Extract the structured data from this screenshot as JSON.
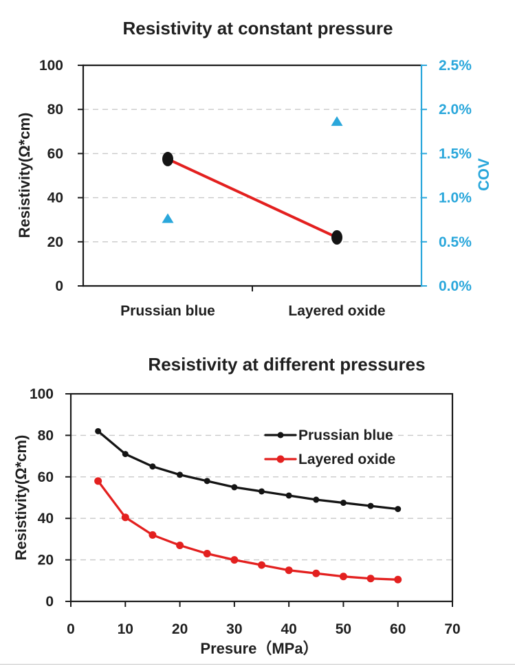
{
  "colors": {
    "background": "#ffffff",
    "text": "#1f1f1f",
    "series_black": "#141414",
    "series_red": "#e3201f",
    "cov_cyan": "#2aa7db",
    "gridline": "#c8c8c8",
    "frame": "#1a1a1a"
  },
  "chart_data": [
    {
      "type": "scatter",
      "title": "Resistivity at constant pressure",
      "categories": [
        "Prussian blue",
        "Layered oxide"
      ],
      "left_axis": {
        "label": "Resistivity(Ω*cm)",
        "ticks": [
          0,
          20,
          40,
          60,
          80,
          100
        ],
        "range": [
          0,
          100
        ]
      },
      "right_axis": {
        "label": "COV",
        "ticks": [
          "0.0%",
          "0.5%",
          "1.0%",
          "1.5%",
          "2.0%",
          "2.5%"
        ],
        "tick_values": [
          0,
          0.5,
          1.0,
          1.5,
          2.0,
          2.5
        ],
        "range": [
          0,
          2.5
        ],
        "unit": "%"
      },
      "grid_values": [
        20,
        40,
        60,
        80
      ],
      "grid_style": "dashed",
      "series": [
        {
          "name": "Resistivity",
          "axis": "left",
          "marker": "ellipse",
          "marker_color": "#141414",
          "line_color": "#e3201f",
          "values": [
            57.5,
            22
          ]
        },
        {
          "name": "COV",
          "axis": "right",
          "marker": "triangle",
          "marker_color": "#2aa7db",
          "unit": "%",
          "values": [
            0.76,
            1.86
          ]
        }
      ]
    },
    {
      "type": "line",
      "title": "Resistivity at different pressures",
      "xlabel": "Presure（MPa）",
      "ylabel": "Resistivity(Ω*cm)",
      "xlim": [
        0,
        70
      ],
      "ylim": [
        0,
        100
      ],
      "x_ticks": [
        0,
        10,
        20,
        30,
        40,
        50,
        60,
        70
      ],
      "y_ticks": [
        0,
        20,
        40,
        60,
        80,
        100
      ],
      "grid_values": [
        20,
        40,
        60,
        80
      ],
      "grid_style": "dashed",
      "legend_position": "inside top-right",
      "x": [
        5,
        10,
        15,
        20,
        25,
        30,
        35,
        40,
        45,
        50,
        55,
        60
      ],
      "series": [
        {
          "name": "Prussian blue",
          "color": "#141414",
          "marker": "circle",
          "values": [
            82,
            71,
            65,
            61,
            58,
            55,
            53,
            51,
            49,
            47.5,
            46,
            44.5
          ]
        },
        {
          "name": "Layered oxide",
          "color": "#e3201f",
          "marker": "circle",
          "values": [
            58,
            40.5,
            32,
            27,
            23,
            20,
            17.5,
            15,
            13.5,
            12,
            11,
            10.5
          ]
        }
      ]
    }
  ]
}
